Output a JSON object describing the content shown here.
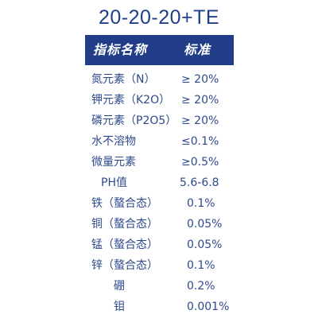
{
  "title": "20-20-20+TE",
  "header": {
    "name_label": "指标名称",
    "standard_label": "标准"
  },
  "rows": [
    {
      "name": "氮元素（N）",
      "value": "≥ 20%"
    },
    {
      "name": "钾元素（K2O）",
      "value": "≥ 20%"
    },
    {
      "name": "磷元素（P2O5）",
      "value": "≥ 20%"
    },
    {
      "name": "水不溶物",
      "value": "≤0.1%"
    },
    {
      "name": "微量元素",
      "value": "≥0.5%"
    },
    {
      "name": "PH值",
      "value": "5.6-6.8"
    },
    {
      "name": "铁（螯合态）",
      "value": "0.1%"
    },
    {
      "name": "铜（螯合态）",
      "value": "0.05%"
    },
    {
      "name": "锰（螯合态）",
      "value": "0.05%"
    },
    {
      "name": "锌（螯合态）",
      "value": "0.1%"
    },
    {
      "name": "硼",
      "value": "0.2%"
    },
    {
      "name": "钼",
      "value": "0.001%"
    }
  ]
}
